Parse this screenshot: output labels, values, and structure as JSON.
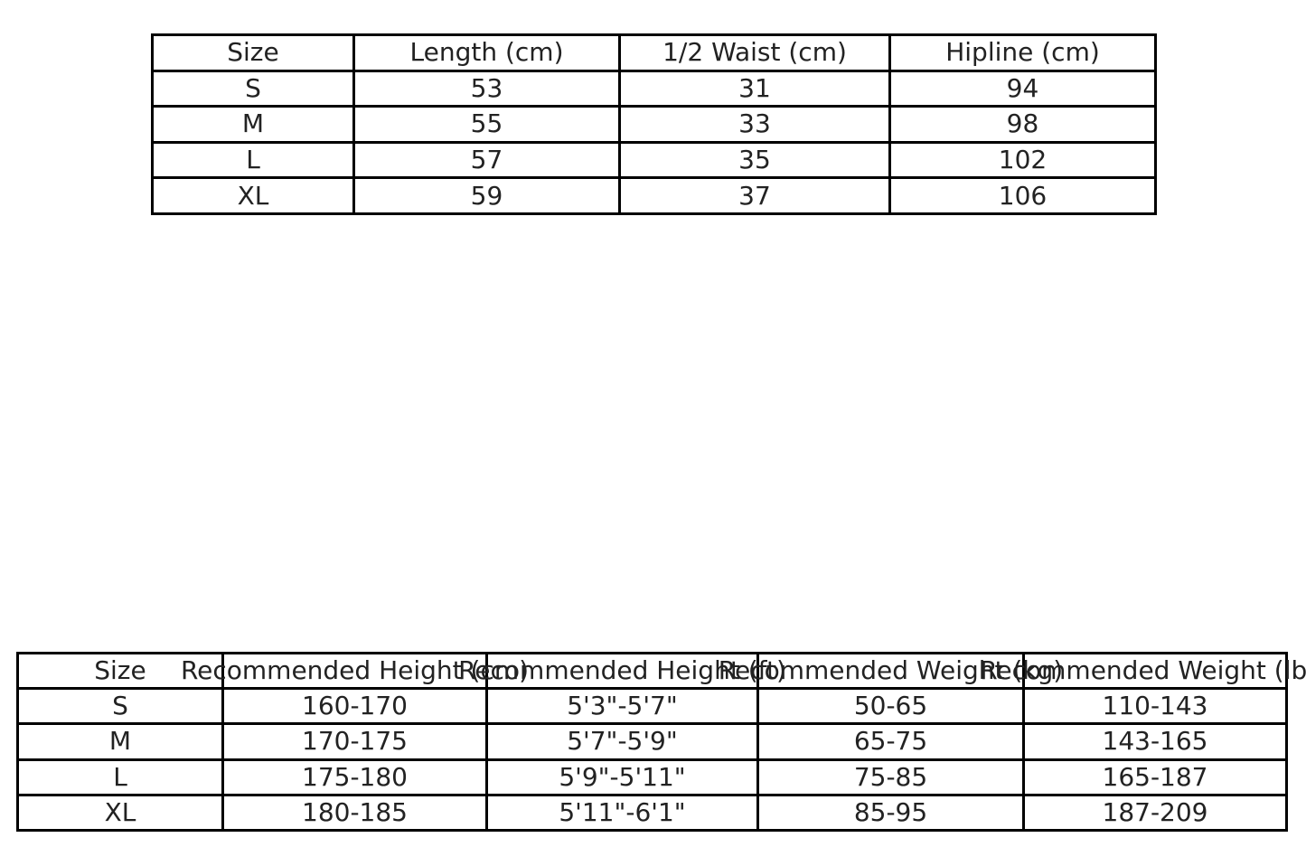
{
  "colors": {
    "background": "#ffffff",
    "table_border": "#000000",
    "text": "#222222"
  },
  "chart_data": [
    {
      "type": "table",
      "name": "garment_measurements",
      "columns": [
        "Size",
        "Length (cm)",
        "1/2 Waist (cm)",
        "Hipline (cm)"
      ],
      "rows": [
        [
          "S",
          "53",
          "31",
          "94"
        ],
        [
          "M",
          "55",
          "33",
          "98"
        ],
        [
          "L",
          "57",
          "35",
          "102"
        ],
        [
          "XL",
          "59",
          "37",
          "106"
        ]
      ]
    },
    {
      "type": "table",
      "name": "size_recommendations",
      "columns": [
        "Size",
        "Recommended Height (cm)",
        "Recommended Height (ft)",
        "Recommended Weight (kg)",
        "Recommended Weight (lbs)"
      ],
      "rows": [
        [
          "S",
          "160-170",
          "5'3\"-5'7\"",
          "50-65",
          "110-143"
        ],
        [
          "M",
          "170-175",
          "5'7\"-5'9\"",
          "65-75",
          "143-165"
        ],
        [
          "L",
          "175-180",
          "5'9\"-5'11\"",
          "75-85",
          "165-187"
        ],
        [
          "XL",
          "180-185",
          "5'11\"-6'1\"",
          "85-95",
          "187-209"
        ]
      ]
    }
  ]
}
